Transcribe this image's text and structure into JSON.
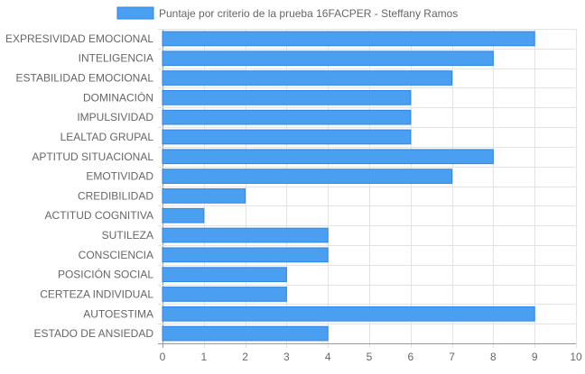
{
  "colors": {
    "bar_fill": "#4b9ff0",
    "bar_stroke": "#2f86e6",
    "grid": "#e3e3e3",
    "axis_line": "#999999",
    "text": "#666666"
  },
  "chart_data": {
    "type": "bar",
    "orientation": "horizontal",
    "title": "",
    "xlabel": "",
    "ylabel": "",
    "xlim": [
      0,
      10
    ],
    "x_ticks": [
      0,
      1,
      2,
      3,
      4,
      5,
      6,
      7,
      8,
      9,
      10
    ],
    "grid": true,
    "legend_position": "top",
    "categories": [
      "EXPRESIVIDAD EMOCIONAL",
      "INTELIGENCIA",
      "ESTABILIDAD EMOCIONAL",
      "DOMINACIÓN",
      "IMPULSIVIDAD",
      "LEALTAD GRUPAL",
      "APTITUD SITUACIONAL",
      "EMOTIVIDAD",
      "CREDIBILIDAD",
      "ACTITUD COGNITIVA",
      "SUTILEZA",
      "CONSCIENCIA",
      "POSICIÓN SOCIAL",
      "CERTEZA INDIVIDUAL",
      "AUTOESTIMA",
      "ESTADO DE ANSIEDAD"
    ],
    "series": [
      {
        "name": "Puntaje por criterio de la prueba 16FACPER - Steffany Ramos",
        "values": [
          9,
          8,
          7,
          6,
          6,
          6,
          8,
          7,
          2,
          1,
          4,
          4,
          3,
          3,
          9,
          4
        ]
      }
    ]
  }
}
